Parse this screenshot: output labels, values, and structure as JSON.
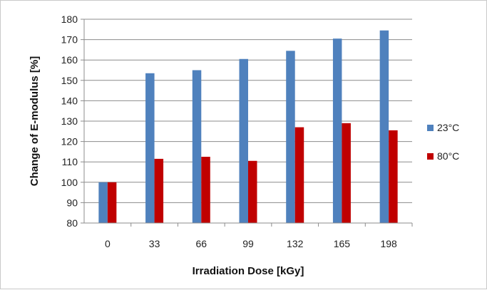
{
  "chart_data": {
    "type": "bar",
    "title": "",
    "xlabel": "Irradiation Dose [kGy]",
    "ylabel": "Change of E-modulus [%]",
    "categories": [
      "0",
      "33",
      "66",
      "99",
      "132",
      "165",
      "198"
    ],
    "ylim": [
      80,
      180
    ],
    "yticks": [
      "80",
      "90",
      "100",
      "110",
      "120",
      "130",
      "140",
      "150",
      "160",
      "170",
      "180"
    ],
    "grid": true,
    "legend_position": "right",
    "series": [
      {
        "name": "23°C",
        "color": "#4F81BD",
        "values": [
          100,
          153.5,
          155,
          160.5,
          164.5,
          170.5,
          174.5
        ]
      },
      {
        "name": "80°C",
        "color": "#C00000",
        "values": [
          100,
          111.5,
          112.5,
          110.5,
          127,
          129,
          125.5
        ]
      }
    ]
  }
}
